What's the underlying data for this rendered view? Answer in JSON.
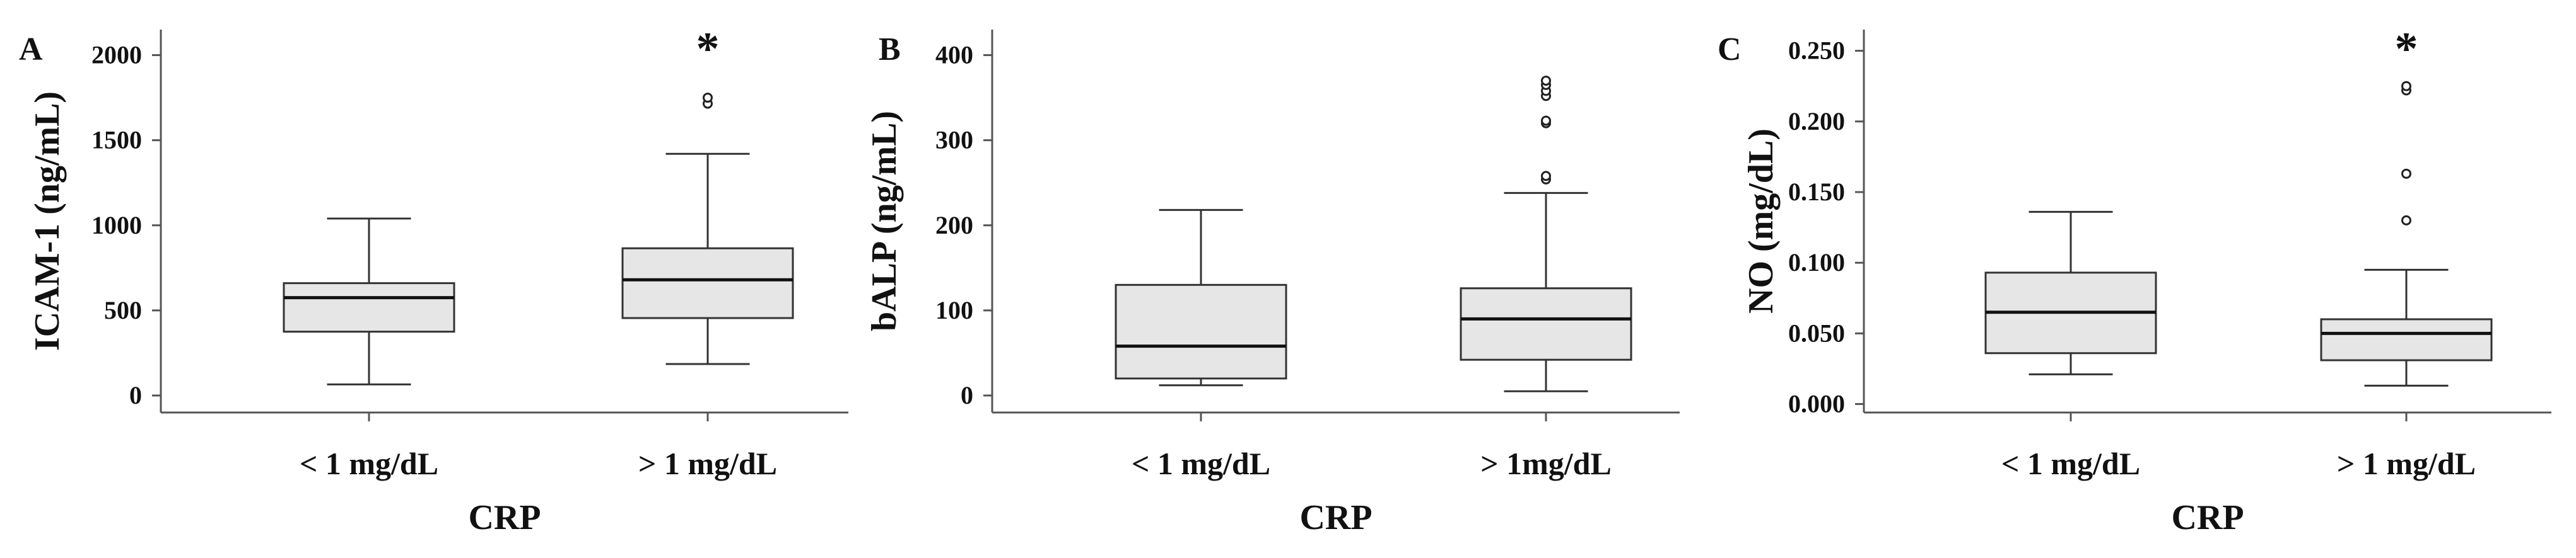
{
  "chart_data": [
    {
      "type": "boxplot",
      "panel": "A",
      "xlabel": "CRP",
      "ylabel": "ICAM-1 (ng/mL)",
      "ylim": [
        -100,
        2150
      ],
      "yticks": [
        0,
        500,
        1000,
        1500,
        2000
      ],
      "ytick_labels": [
        "0",
        "500",
        "1000",
        "1500",
        "2000"
      ],
      "categories": [
        "< 1 mg/dL",
        "> 1 mg/dL"
      ],
      "boxes": [
        {
          "category": "< 1 mg/dL",
          "whisker_low": 65,
          "q1": 375,
          "median": 575,
          "q3": 660,
          "whisker_high": 1040,
          "outliers": [],
          "annotation": ""
        },
        {
          "category": "> 1 mg/dL",
          "whisker_low": 185,
          "q1": 455,
          "median": 680,
          "q3": 865,
          "whisker_high": 1420,
          "outliers": [
            1715,
            1750
          ],
          "annotation": "*"
        }
      ]
    },
    {
      "type": "boxplot",
      "panel": "B",
      "xlabel": "CRP",
      "ylabel": "bALP (ng/mL)",
      "ylim": [
        -20,
        430
      ],
      "yticks": [
        0,
        100,
        200,
        300,
        400
      ],
      "ytick_labels": [
        "0",
        "100",
        "200",
        "300",
        "400"
      ],
      "categories": [
        "< 1 mg/dL",
        "> 1mg/dL"
      ],
      "boxes": [
        {
          "category": "< 1 mg/dL",
          "whisker_low": 12,
          "q1": 20,
          "median": 58,
          "q3": 130,
          "whisker_high": 218,
          "outliers": [],
          "annotation": ""
        },
        {
          "category": "> 1mg/dL",
          "whisker_low": 5,
          "q1": 42,
          "median": 90,
          "q3": 126,
          "whisker_high": 238,
          "outliers": [
            254,
            258,
            320,
            323,
            352,
            358,
            365,
            370
          ],
          "annotation": ""
        }
      ]
    },
    {
      "type": "boxplot",
      "panel": "C",
      "xlabel": "CRP",
      "ylabel": "NO (mg/dL)",
      "ylim": [
        -0.006,
        0.265
      ],
      "yticks": [
        0.0,
        0.05,
        0.1,
        0.15,
        0.2,
        0.25
      ],
      "ytick_labels": [
        "0.000",
        "0.050",
        "0.100",
        "0.150",
        "0.200",
        "0.250"
      ],
      "categories": [
        "< 1 mg/dL",
        "> 1 mg/dL"
      ],
      "boxes": [
        {
          "category": "< 1 mg/dL",
          "whisker_low": 0.021,
          "q1": 0.036,
          "median": 0.065,
          "q3": 0.093,
          "whisker_high": 0.136,
          "outliers": [],
          "annotation": ""
        },
        {
          "category": "> 1 mg/dL",
          "whisker_low": 0.013,
          "q1": 0.031,
          "median": 0.05,
          "q3": 0.06,
          "whisker_high": 0.095,
          "outliers": [
            0.13,
            0.163,
            0.222,
            0.225
          ],
          "annotation": "*"
        }
      ]
    }
  ]
}
